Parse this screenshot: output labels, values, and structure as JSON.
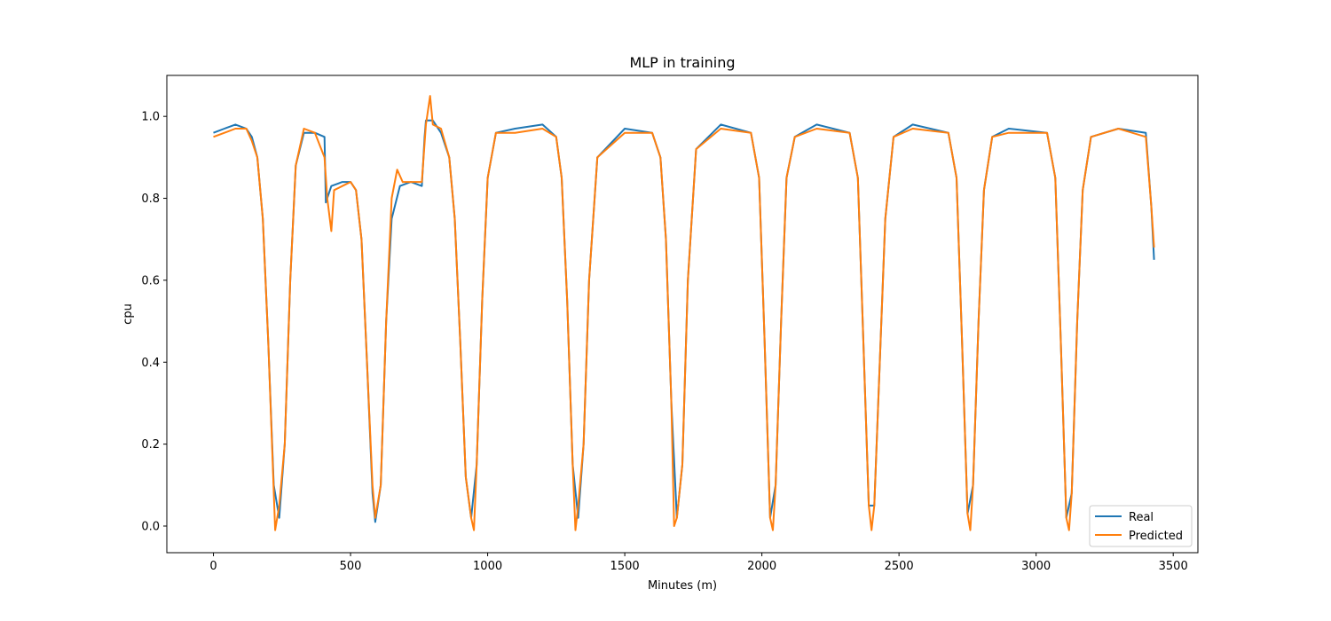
{
  "chart_data": {
    "type": "line",
    "title": "MLP in training",
    "xlabel": "Minutes (m)",
    "ylabel": "cpu",
    "xlim": [
      -170,
      3590
    ],
    "ylim": [
      -0.065,
      1.1
    ],
    "xticks": [
      0,
      500,
      1000,
      1500,
      2000,
      2500,
      3000,
      3500
    ],
    "yticks": [
      0.0,
      0.2,
      0.4,
      0.6,
      0.8,
      1.0
    ],
    "xtick_labels": [
      "0",
      "500",
      "1000",
      "1500",
      "2000",
      "2500",
      "3000",
      "3500"
    ],
    "ytick_labels": [
      "0.0",
      "0.2",
      "0.4",
      "0.6",
      "0.8",
      "1.0"
    ],
    "grid": false,
    "legend_position": "bottom-right",
    "series": [
      {
        "name": "Real",
        "color": "#1f77b4",
        "x": [
          0,
          40,
          80,
          120,
          140,
          160,
          180,
          200,
          220,
          240,
          260,
          280,
          300,
          330,
          370,
          405,
          410,
          430,
          470,
          500,
          520,
          540,
          560,
          580,
          590,
          610,
          630,
          650,
          680,
          720,
          760,
          770,
          775,
          800,
          830,
          860,
          880,
          900,
          920,
          940,
          960,
          980,
          1000,
          1030,
          1100,
          1200,
          1250,
          1270,
          1290,
          1310,
          1330,
          1350,
          1370,
          1400,
          1500,
          1600,
          1630,
          1650,
          1670,
          1690,
          1710,
          1730,
          1760,
          1850,
          1960,
          1990,
          2010,
          2030,
          2050,
          2070,
          2090,
          2120,
          2200,
          2320,
          2350,
          2370,
          2390,
          2410,
          2430,
          2450,
          2480,
          2550,
          2680,
          2710,
          2730,
          2750,
          2770,
          2790,
          2810,
          2840,
          2900,
          3040,
          3070,
          3090,
          3110,
          3130,
          3150,
          3170,
          3200,
          3300,
          3400,
          3420,
          3430
        ],
        "values": [
          0.96,
          0.97,
          0.98,
          0.97,
          0.95,
          0.9,
          0.75,
          0.45,
          0.1,
          0.02,
          0.2,
          0.6,
          0.88,
          0.96,
          0.96,
          0.95,
          0.79,
          0.83,
          0.84,
          0.84,
          0.82,
          0.7,
          0.4,
          0.08,
          0.01,
          0.1,
          0.5,
          0.75,
          0.83,
          0.84,
          0.83,
          0.95,
          0.99,
          0.99,
          0.96,
          0.9,
          0.75,
          0.45,
          0.12,
          0.02,
          0.15,
          0.55,
          0.85,
          0.96,
          0.97,
          0.98,
          0.95,
          0.85,
          0.55,
          0.15,
          0.02,
          0.2,
          0.6,
          0.9,
          0.97,
          0.96,
          0.9,
          0.7,
          0.3,
          0.02,
          0.15,
          0.6,
          0.92,
          0.98,
          0.96,
          0.85,
          0.45,
          0.02,
          0.1,
          0.5,
          0.85,
          0.95,
          0.98,
          0.96,
          0.85,
          0.45,
          0.05,
          0.05,
          0.4,
          0.75,
          0.95,
          0.98,
          0.96,
          0.85,
          0.45,
          0.03,
          0.1,
          0.5,
          0.82,
          0.95,
          0.97,
          0.96,
          0.85,
          0.45,
          0.02,
          0.08,
          0.5,
          0.82,
          0.95,
          0.97,
          0.96,
          0.78,
          0.65
        ]
      },
      {
        "name": "Predicted",
        "color": "#ff7f0e",
        "x": [
          0,
          40,
          80,
          120,
          140,
          160,
          180,
          200,
          225,
          240,
          260,
          280,
          300,
          330,
          370,
          405,
          415,
          430,
          440,
          470,
          500,
          520,
          540,
          560,
          580,
          590,
          610,
          630,
          650,
          670,
          690,
          720,
          760,
          775,
          790,
          800,
          830,
          860,
          880,
          900,
          920,
          940,
          950,
          960,
          980,
          1000,
          1030,
          1100,
          1200,
          1250,
          1270,
          1290,
          1310,
          1320,
          1330,
          1350,
          1370,
          1400,
          1500,
          1600,
          1630,
          1650,
          1670,
          1680,
          1690,
          1710,
          1730,
          1760,
          1850,
          1960,
          1990,
          2010,
          2030,
          2040,
          2050,
          2070,
          2090,
          2120,
          2200,
          2320,
          2350,
          2370,
          2390,
          2400,
          2410,
          2430,
          2450,
          2480,
          2550,
          2680,
          2710,
          2730,
          2750,
          2760,
          2770,
          2790,
          2810,
          2840,
          2900,
          3040,
          3070,
          3090,
          3110,
          3120,
          3130,
          3150,
          3170,
          3200,
          3300,
          3400,
          3420,
          3430
        ],
        "values": [
          0.95,
          0.96,
          0.97,
          0.97,
          0.94,
          0.9,
          0.75,
          0.45,
          -0.01,
          0.05,
          0.2,
          0.6,
          0.88,
          0.97,
          0.96,
          0.9,
          0.8,
          0.72,
          0.82,
          0.83,
          0.84,
          0.82,
          0.7,
          0.4,
          0.1,
          0.02,
          0.1,
          0.5,
          0.8,
          0.87,
          0.84,
          0.84,
          0.84,
          0.98,
          1.05,
          0.98,
          0.97,
          0.9,
          0.75,
          0.45,
          0.12,
          0.02,
          -0.01,
          0.15,
          0.55,
          0.85,
          0.96,
          0.96,
          0.97,
          0.95,
          0.85,
          0.55,
          0.15,
          -0.01,
          0.05,
          0.2,
          0.6,
          0.9,
          0.96,
          0.96,
          0.9,
          0.7,
          0.3,
          0.0,
          0.02,
          0.15,
          0.6,
          0.92,
          0.97,
          0.96,
          0.85,
          0.45,
          0.02,
          -0.01,
          0.1,
          0.5,
          0.85,
          0.95,
          0.97,
          0.96,
          0.85,
          0.45,
          0.05,
          -0.01,
          0.05,
          0.4,
          0.75,
          0.95,
          0.97,
          0.96,
          0.85,
          0.45,
          0.03,
          -0.01,
          0.1,
          0.5,
          0.82,
          0.95,
          0.96,
          0.96,
          0.85,
          0.45,
          0.02,
          -0.01,
          0.08,
          0.5,
          0.82,
          0.95,
          0.97,
          0.95,
          0.78,
          0.68
        ]
      }
    ]
  }
}
